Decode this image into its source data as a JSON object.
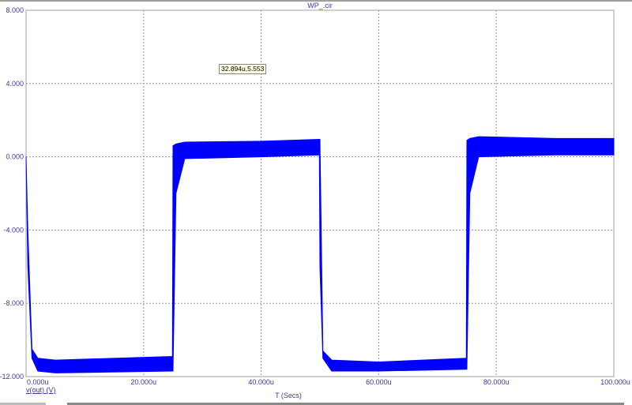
{
  "chart_data": {
    "type": "line",
    "title": "WP_.cir",
    "xlabel": "T (Secs)",
    "ylabel": "",
    "xlim": [
      0,
      100
    ],
    "ylim": [
      -12,
      8
    ],
    "x_unit": "u",
    "xticks": [
      "0.000u",
      "20.000u",
      "40.000u",
      "60.000u",
      "80.000u",
      "100.000u"
    ],
    "yticks": [
      "8.000",
      "4.000",
      "0.000",
      "-4.000",
      "-8.000",
      "-12.000"
    ],
    "grid": true,
    "series": [
      {
        "name": "v(out) (V)",
        "color": "#0000ff",
        "envelope": {
          "x": [
            0,
            0.3,
            1,
            2,
            5,
            24.9,
            25,
            25.5,
            27,
            40,
            49.9,
            50,
            50.5,
            52,
            60,
            74.9,
            75,
            75.5,
            77,
            90,
            100
          ],
          "ymin": [
            0,
            -6,
            -11.0,
            -11.7,
            -11.8,
            -11.7,
            -11.7,
            -2,
            -0.1,
            0.0,
            0.1,
            -6,
            -11.0,
            -11.7,
            -11.7,
            -11.6,
            -11.6,
            -2,
            0.0,
            0.1,
            0.1
          ],
          "ymax": [
            0,
            -4,
            -10.5,
            -11.0,
            -11.1,
            -10.9,
            0.6,
            0.7,
            0.8,
            0.85,
            0.95,
            0.95,
            -10.6,
            -11.1,
            -11.2,
            -11.0,
            0.9,
            1.0,
            1.1,
            1.0,
            1.0
          ]
        }
      }
    ],
    "legend": "bottom-left",
    "cursor_readout": "32.894u,5.553"
  }
}
